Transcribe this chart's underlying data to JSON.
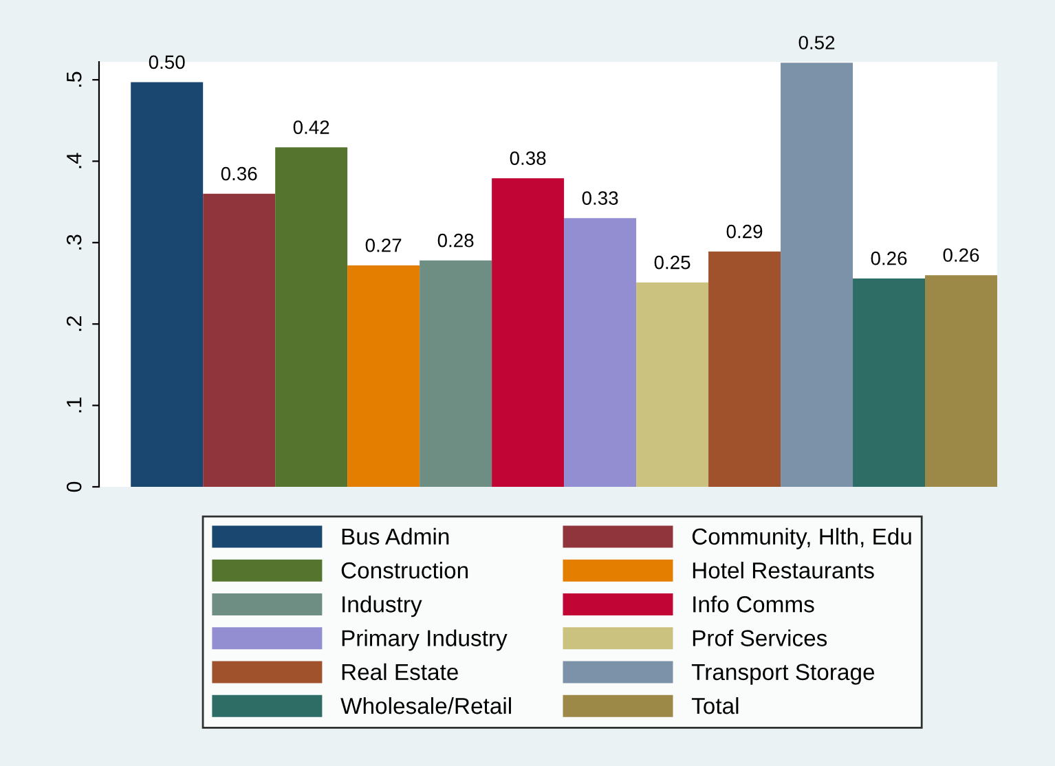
{
  "chart_data": {
    "type": "bar",
    "categories": [
      null
    ],
    "ylim": [
      0,
      0.522
    ],
    "yticks": [
      0,
      {
        "value": 0.1,
        "label": ".1"
      },
      {
        "value": 0.2,
        "label": ".2"
      },
      {
        "value": 0.3,
        "label": ".3"
      },
      {
        "value": 0.4,
        "label": ".4"
      },
      {
        "value": 0.5,
        "label": ".5"
      }
    ],
    "grid": false,
    "legend": "bottom",
    "tick_labels": "y",
    "series": [
      {
        "name": "Bus Admin",
        "color": "#1a476f",
        "values": [
          0.497
        ],
        "value_labels": [
          "0.50"
        ]
      },
      {
        "name": "Community, Hlth, Edu",
        "color": "#90353b",
        "values": [
          0.36
        ],
        "value_labels": [
          "0.36"
        ]
      },
      {
        "name": "Construction",
        "color": "#55752f",
        "values": [
          0.417
        ],
        "value_labels": [
          "0.42"
        ]
      },
      {
        "name": "Hotel Restaurants",
        "color": "#e37e00",
        "values": [
          0.272
        ],
        "value_labels": [
          "0.27"
        ]
      },
      {
        "name": "Industry",
        "color": "#6e8e84",
        "values": [
          0.278
        ],
        "value_labels": [
          "0.28"
        ]
      },
      {
        "name": "Info Comms",
        "color": "#c10534",
        "values": [
          0.379
        ],
        "value_labels": [
          "0.38"
        ]
      },
      {
        "name": "Primary Industry",
        "color": "#938dd2",
        "values": [
          0.33
        ],
        "value_labels": [
          "0.33"
        ]
      },
      {
        "name": "Prof Services",
        "color": "#cac27e",
        "values": [
          0.251
        ],
        "value_labels": [
          "0.25"
        ]
      },
      {
        "name": "Real Estate",
        "color": "#a0522d",
        "values": [
          0.289
        ],
        "value_labels": [
          "0.29"
        ]
      },
      {
        "name": "Transport Storage",
        "color": "#7b92a8",
        "values": [
          0.521
        ],
        "value_labels": [
          "0.52"
        ]
      },
      {
        "name": "Wholesale/Retail",
        "color": "#2d6d66",
        "values": [
          0.256
        ],
        "value_labels": [
          "0.26"
        ]
      },
      {
        "name": "Total",
        "color": "#9c8847",
        "values": [
          0.26
        ],
        "value_labels": [
          "0.26"
        ]
      }
    ]
  }
}
